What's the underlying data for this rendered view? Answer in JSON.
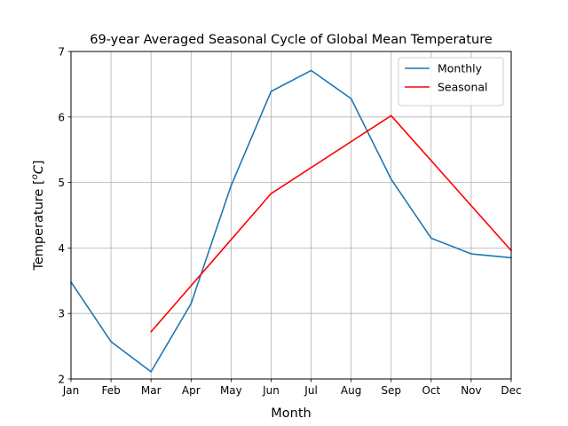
{
  "chart_data": {
    "type": "line",
    "title": "69-year Averaged Seasonal Cycle of Global Mean Temperature",
    "xlabel": "Month",
    "ylabel_prefix": "Temperature [",
    "ylabel_sup": "o",
    "ylabel_unit": "C",
    "ylabel_suffix": "]",
    "categories": [
      "Jan",
      "Feb",
      "Mar",
      "Apr",
      "May",
      "Jun",
      "Jul",
      "Aug",
      "Sep",
      "Oct",
      "Nov",
      "Dec"
    ],
    "ylim": [
      2,
      7
    ],
    "yticks": [
      "2",
      "3",
      "4",
      "5",
      "6",
      "7"
    ],
    "grid": true,
    "legend_position": "top-right",
    "series": [
      {
        "name": "Monthly",
        "color": "#1f77b4",
        "x": [
          "Jan",
          "Feb",
          "Mar",
          "Apr",
          "May",
          "Jun",
          "Jul",
          "Aug",
          "Sep",
          "Oct",
          "Nov",
          "Dec"
        ],
        "values": [
          3.48,
          2.57,
          2.11,
          3.15,
          4.95,
          6.39,
          6.71,
          6.28,
          5.05,
          4.15,
          3.91,
          3.85
        ]
      },
      {
        "name": "Seasonal",
        "color": "#ff0000",
        "x": [
          "Mar",
          "Jun",
          "Sep",
          "Dec"
        ],
        "values": [
          2.72,
          4.83,
          6.02,
          3.96
        ]
      }
    ]
  }
}
